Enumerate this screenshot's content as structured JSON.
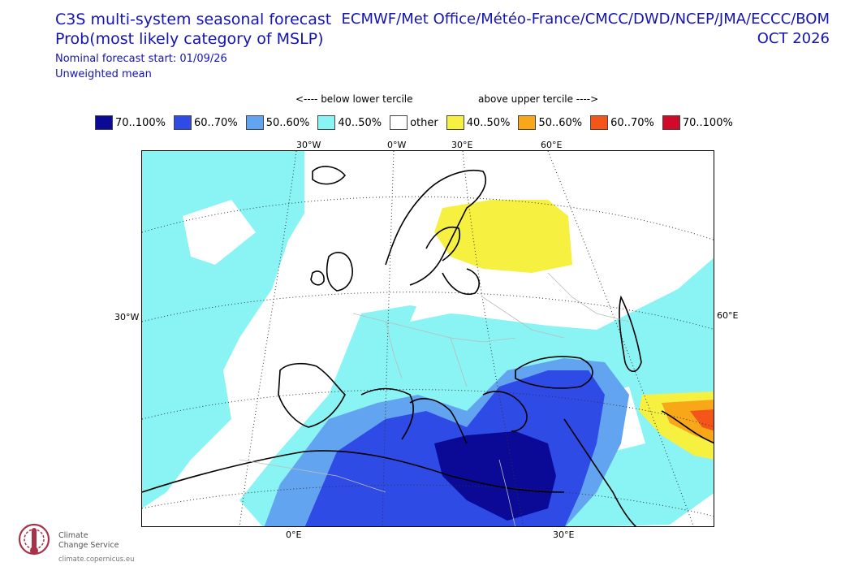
{
  "header": {
    "title_line1": "C3S multi-system seasonal forecast",
    "title_line2": "Prob(most likely category of MSLP)",
    "subtitle_line1": "Nominal forecast start: 01/09/26",
    "subtitle_line2": "Unweighted mean",
    "centres": "ECMWF/Met Office/Météo-France/CMCC/DWD/NCEP/JMA/ECCC/BOM",
    "valid_month": "OCT 2026"
  },
  "tercile": {
    "below": "<---- below lower tercile",
    "above": "above upper tercile ---->"
  },
  "legend": [
    {
      "label": "70..100%",
      "color": "#0a0a96"
    },
    {
      "label": "60..70%",
      "color": "#2e4be6"
    },
    {
      "label": "50..60%",
      "color": "#63a4f0"
    },
    {
      "label": "40..50%",
      "color": "#8af4f4"
    },
    {
      "label": "other",
      "color": "#ffffff"
    },
    {
      "label": "40..50%",
      "color": "#f6f040"
    },
    {
      "label": "50..60%",
      "color": "#f8a718"
    },
    {
      "label": "60..70%",
      "color": "#f4561a"
    },
    {
      "label": "70..100%",
      "color": "#d20a2a"
    }
  ],
  "map": {
    "ticks_top": [
      "30°W",
      "0°W",
      "30°E",
      "60°E"
    ],
    "ticks_left": [
      "30°W"
    ],
    "ticks_right": [
      "60°E"
    ],
    "ticks_bottom": [
      "0°E",
      "30°E"
    ]
  },
  "logo": {
    "line1": "Climate",
    "line2": "Change Service",
    "url": "climate.copernicus.eu"
  }
}
